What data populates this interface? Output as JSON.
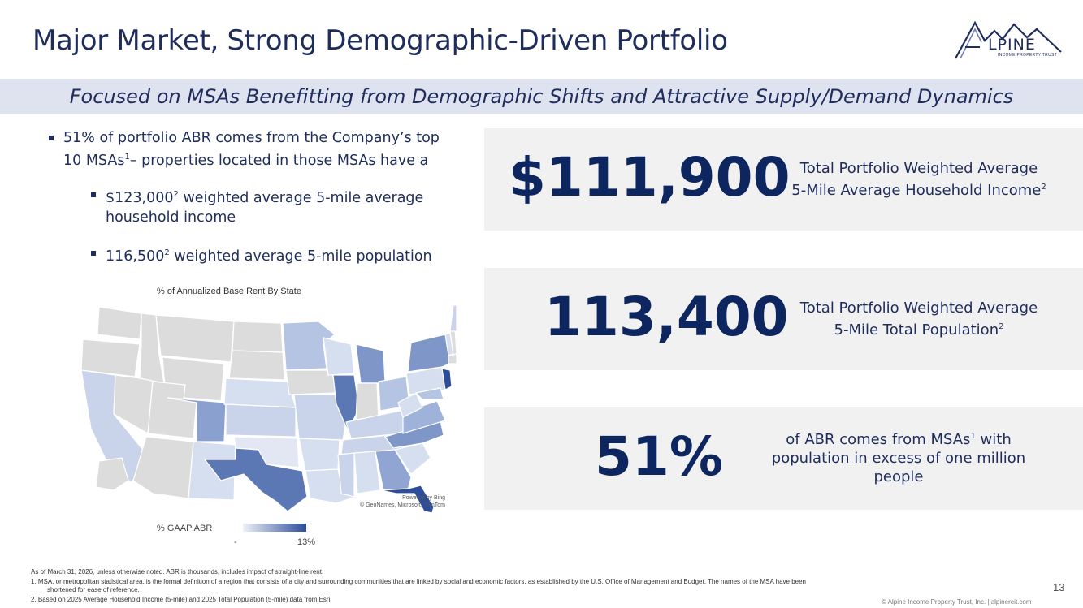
{
  "title": "Major Market, Strong Demographic-Driven Portfolio",
  "logo": {
    "text": "LPINE",
    "subtext": "INCOME PROPERTY TRUST"
  },
  "banner": "Focused on MSAs Benefitting from Demographic Shifts and Attractive Supply/Demand Dynamics",
  "bullets": {
    "main_a": "51% of portfolio ABR comes from the Company’s top",
    "main_b": "10 MSAs",
    "main_b_sup": "1",
    "main_c": "– properties located in those MSAs have a",
    "sub1_a": "$123,000",
    "sub1_sup": "2",
    "sub1_b": " weighted average 5-mile average household income",
    "sub2_a": "116,500",
    "sub2_sup": "2",
    "sub2_b": " weighted average 5-mile population"
  },
  "map": {
    "title": "% of Annualized Base Rent By State",
    "attribution_1": "Powered by Bing",
    "attribution_2": "© GeoNames, Microsoft, TomTom",
    "legend_label": "% GAAP ABR",
    "legend_min": "-",
    "legend_max": "13%",
    "color_low": "#eef1f8",
    "color_high": "#2d4d9a"
  },
  "stats": [
    {
      "value": "$111,900",
      "desc_1": "Total Portfolio Weighted Average",
      "desc_2": "5-Mile Average Household Income",
      "sup": "2"
    },
    {
      "value": "113,400",
      "desc_1": "Total Portfolio Weighted Average",
      "desc_2": "5-Mile Total Population",
      "sup": "2"
    },
    {
      "value": "51%",
      "desc_1a": "of ABR comes from MSAs",
      "sup": "1",
      "desc_1b": " with",
      "desc_2": "population in excess of one million",
      "desc_3": "people"
    }
  ],
  "footnotes": {
    "intro": "As of March 31, 2026, unless otherwise noted. ABR is thousands, includes impact of straight-line rent.",
    "n1": "1.    MSA, or metropolitan statistical area, is the formal definition of a region that consists of a city and surrounding communities that are linked by social and economic factors, as established by the U.S. Office of Management and Budget. The names of the MSA have been",
    "n1b": "shortened for ease of reference.",
    "n2": "2.    Based on 2025 Average Household Income (5-mile) and 2025 Total Population (5-mile) data from Esri."
  },
  "page_number": "13",
  "copyright": "© Alpine Income Property Trust, Inc.  |  alpinereit.com"
}
